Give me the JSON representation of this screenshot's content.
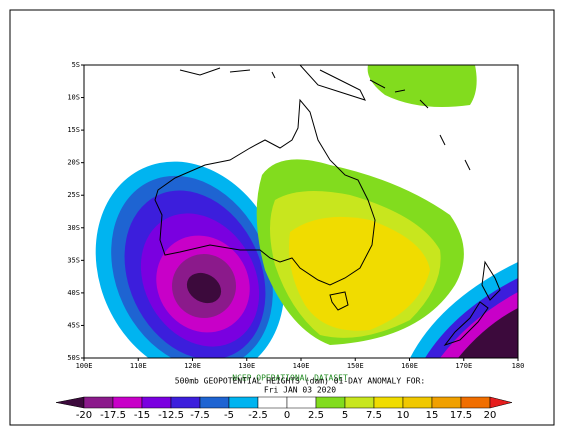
{
  "map": {
    "title": "500mb GEOPOTENTIAL HEIGHTS (dam)     01-DAY ANOMALY FOR:",
    "date": "Fri JAN 03 2020",
    "watermark": "NCEP OPERATIONAL DATASET",
    "xlim": [
      100,
      180
    ],
    "ylim": [
      -50,
      -5
    ],
    "xticks": [
      {
        "value": 100,
        "label": "100E"
      },
      {
        "value": 110,
        "label": "110E"
      },
      {
        "value": 120,
        "label": "120E"
      },
      {
        "value": 130,
        "label": "130E"
      },
      {
        "value": 140,
        "label": "140E"
      },
      {
        "value": 150,
        "label": "150E"
      },
      {
        "value": 160,
        "label": "160E"
      },
      {
        "value": 170,
        "label": "170E"
      },
      {
        "value": 180,
        "label": "180"
      }
    ],
    "yticks": [
      {
        "value": -5,
        "label": "5S"
      },
      {
        "value": -10,
        "label": "10S"
      },
      {
        "value": -15,
        "label": "15S"
      },
      {
        "value": -20,
        "label": "20S"
      },
      {
        "value": -25,
        "label": "25S"
      },
      {
        "value": -30,
        "label": "30S"
      },
      {
        "value": -35,
        "label": "35S"
      },
      {
        "value": -40,
        "label": "40S"
      },
      {
        "value": -45,
        "label": "45S"
      },
      {
        "value": -50,
        "label": "50S"
      }
    ],
    "levels": [
      -20,
      -17.5,
      -15,
      -12.5,
      -7.5,
      -5,
      -2.5,
      0,
      2.5,
      5,
      7.5,
      10,
      15,
      17.5,
      20
    ],
    "colors": [
      "#3c0a3c",
      "#8b1a8b",
      "#c800c8",
      "#7a00e0",
      "#3c1edc",
      "#1e64d2",
      "#00b4f0",
      "#ffffff",
      "#ffffff",
      "#82dc1e",
      "#c8e61e",
      "#f0dc00",
      "#f0c800",
      "#f0a000",
      "#f06e00",
      "#e61e1e"
    ]
  }
}
